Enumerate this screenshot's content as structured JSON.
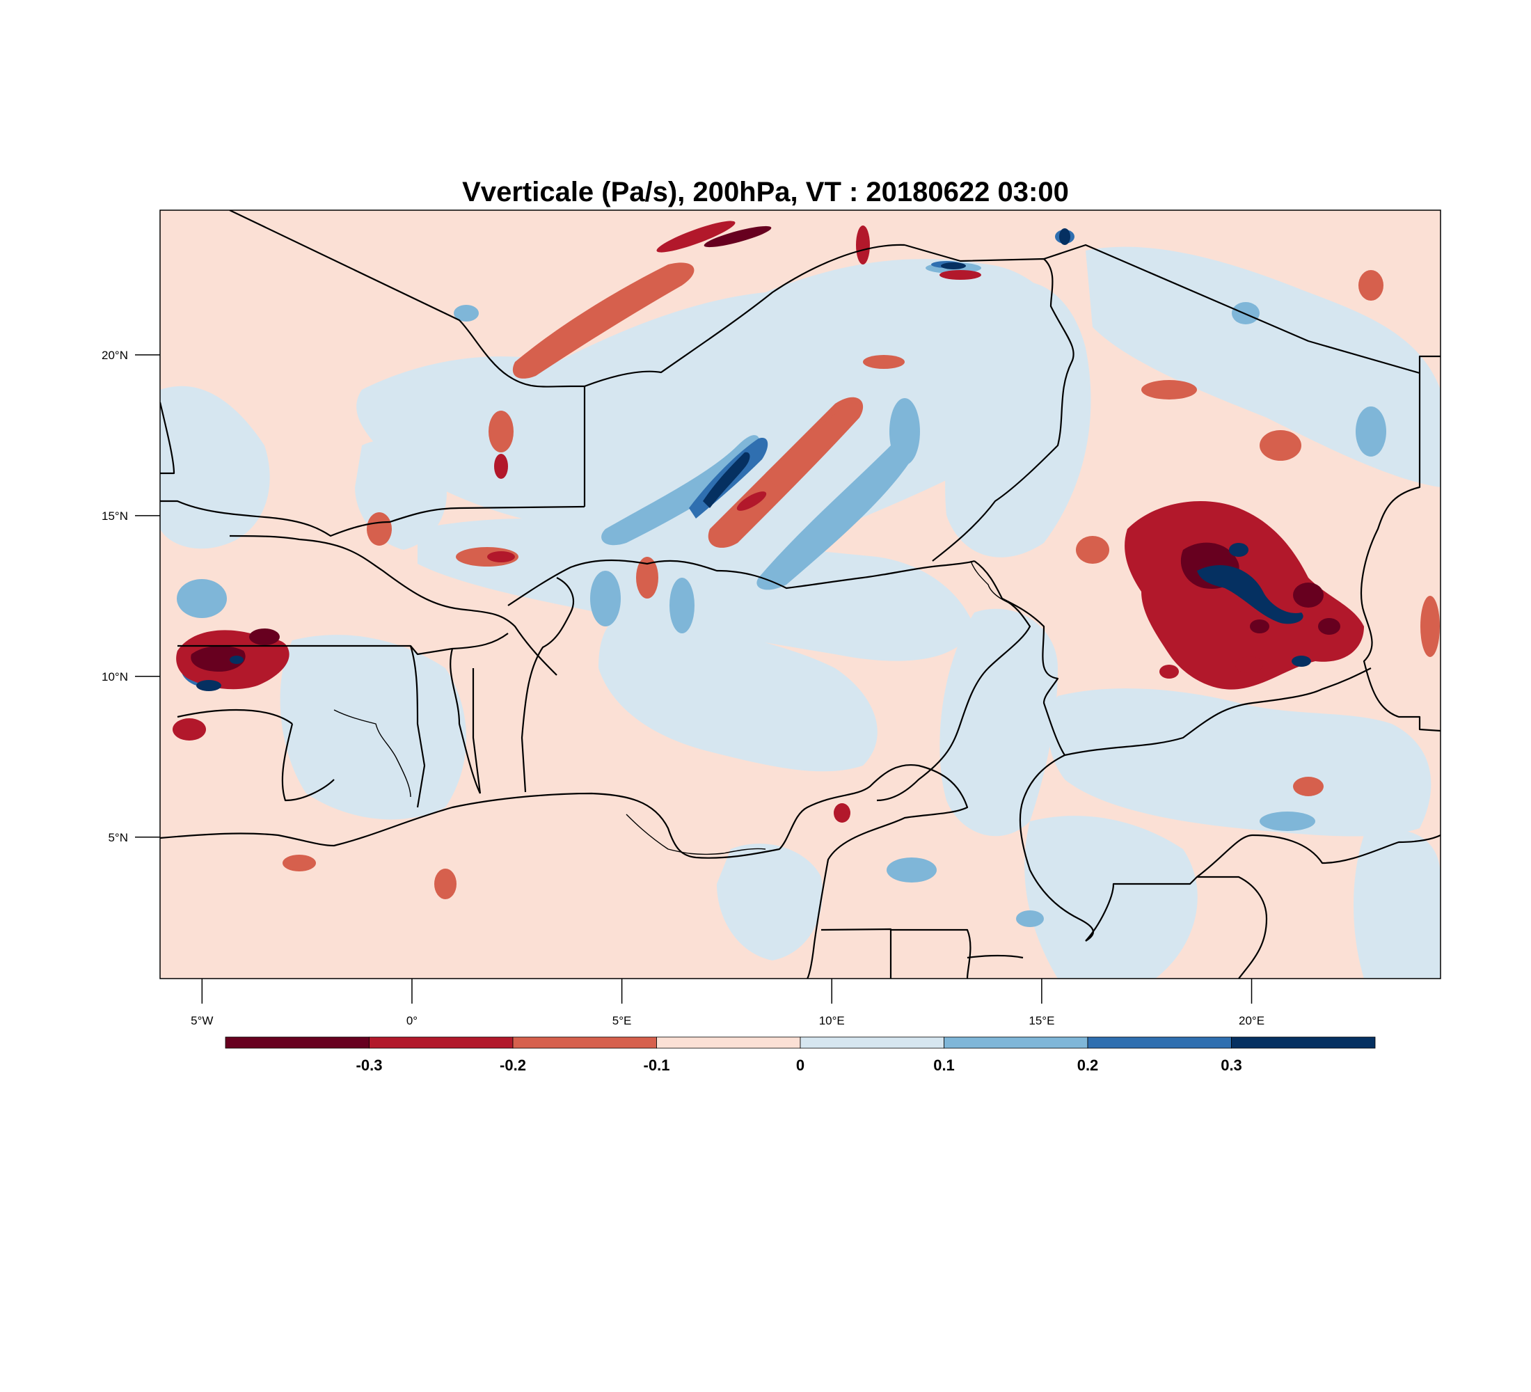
{
  "title": "Vverticale (Pa/s), 200hPa, VT : 20180622  03:00",
  "map": {
    "lon_range": [
      -6,
      24.5
    ],
    "lat_range": [
      0.6,
      24.5
    ],
    "x_ticks": [
      {
        "value": -5,
        "label": "5°W"
      },
      {
        "value": 0,
        "label": "0°"
      },
      {
        "value": 5,
        "label": "5°E"
      },
      {
        "value": 10,
        "label": "10°E"
      },
      {
        "value": 15,
        "label": "15°E"
      },
      {
        "value": 20,
        "label": "20°E"
      }
    ],
    "y_ticks": [
      {
        "value": 5,
        "label": "5°N"
      },
      {
        "value": 10,
        "label": "10°N"
      },
      {
        "value": 15,
        "label": "15°N"
      },
      {
        "value": 20,
        "label": "20°N"
      }
    ]
  },
  "colorbar": {
    "colors": [
      "#67001f",
      "#b2182b",
      "#d6604d",
      "#fbe0d5",
      "#d6e6f0",
      "#7fb6d8",
      "#2f6fb0",
      "#053061"
    ],
    "labels": [
      "-0.3",
      "-0.2",
      "-0.1",
      "0",
      "0.1",
      "0.2",
      "0.3"
    ]
  },
  "palette": {
    "neg3": "#67001f",
    "neg2": "#b2182b",
    "neg1": "#d6604d",
    "neg0": "#fbe0d5",
    "pos0": "#d6e6f0",
    "pos1": "#7fb6d8",
    "pos2": "#2f6fb0",
    "pos3": "#053061"
  }
}
